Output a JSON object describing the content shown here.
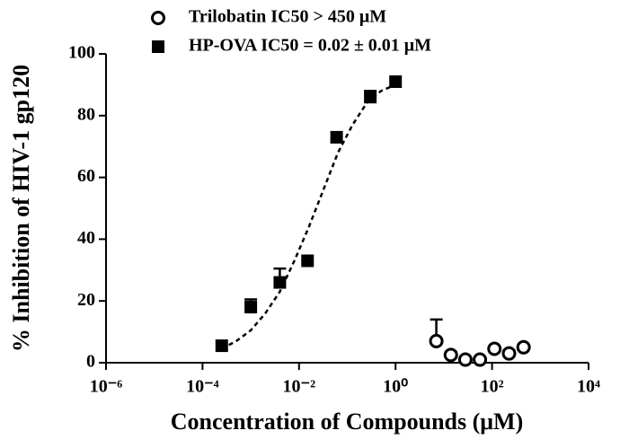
{
  "chart_data": {
    "type": "scatter",
    "x_label": "Concentration of Compounds (μM)",
    "y_label": "% Inhibition of HIV-1 gp120",
    "xlim": [
      1e-06,
      10000
    ],
    "xscale": "log",
    "xticks": [
      {
        "value": 1e-06,
        "label": "10⁻⁶"
      },
      {
        "value": 0.0001,
        "label": "10⁻⁴"
      },
      {
        "value": 0.01,
        "label": "10⁻²"
      },
      {
        "value": 1,
        "label": "10⁰"
      },
      {
        "value": 100,
        "label": "10²"
      },
      {
        "value": 10000,
        "label": "10⁴"
      }
    ],
    "ylim": [
      0,
      100
    ],
    "yticks": [
      0,
      20,
      40,
      60,
      80,
      100
    ],
    "legend": "top",
    "series": [
      {
        "name": "Trilobatin IC50 > 450 μM",
        "color": "#000000",
        "marker": "open-circle",
        "x": [
          7,
          14,
          28,
          56,
          112,
          225,
          450
        ],
        "values": [
          7,
          2.5,
          1,
          1,
          4.5,
          3,
          5
        ],
        "errors": [
          7,
          1,
          null,
          null,
          null,
          1,
          null
        ]
      },
      {
        "name": "HP-OVA IC50 = 0.02 ±  0.01 μM",
        "color": "#000000",
        "marker": "filled-square",
        "x": [
          0.00025,
          0.001,
          0.004,
          0.015,
          0.06,
          0.3,
          1
        ],
        "values": [
          5.5,
          18,
          26,
          33,
          73,
          86,
          91
        ],
        "errors": [
          null,
          2.5,
          4.5,
          null,
          null,
          2,
          null
        ]
      }
    ],
    "fit": {
      "series": 1,
      "style": "dashed",
      "x": [
        0.00025,
        0.0005,
        0.001,
        0.002,
        0.004,
        0.008,
        0.016,
        0.032,
        0.064,
        0.128,
        0.25,
        0.5,
        1
      ],
      "values": [
        4.5,
        7,
        10.5,
        16,
        23,
        33,
        44,
        56,
        68,
        77,
        84,
        88,
        90
      ]
    }
  }
}
